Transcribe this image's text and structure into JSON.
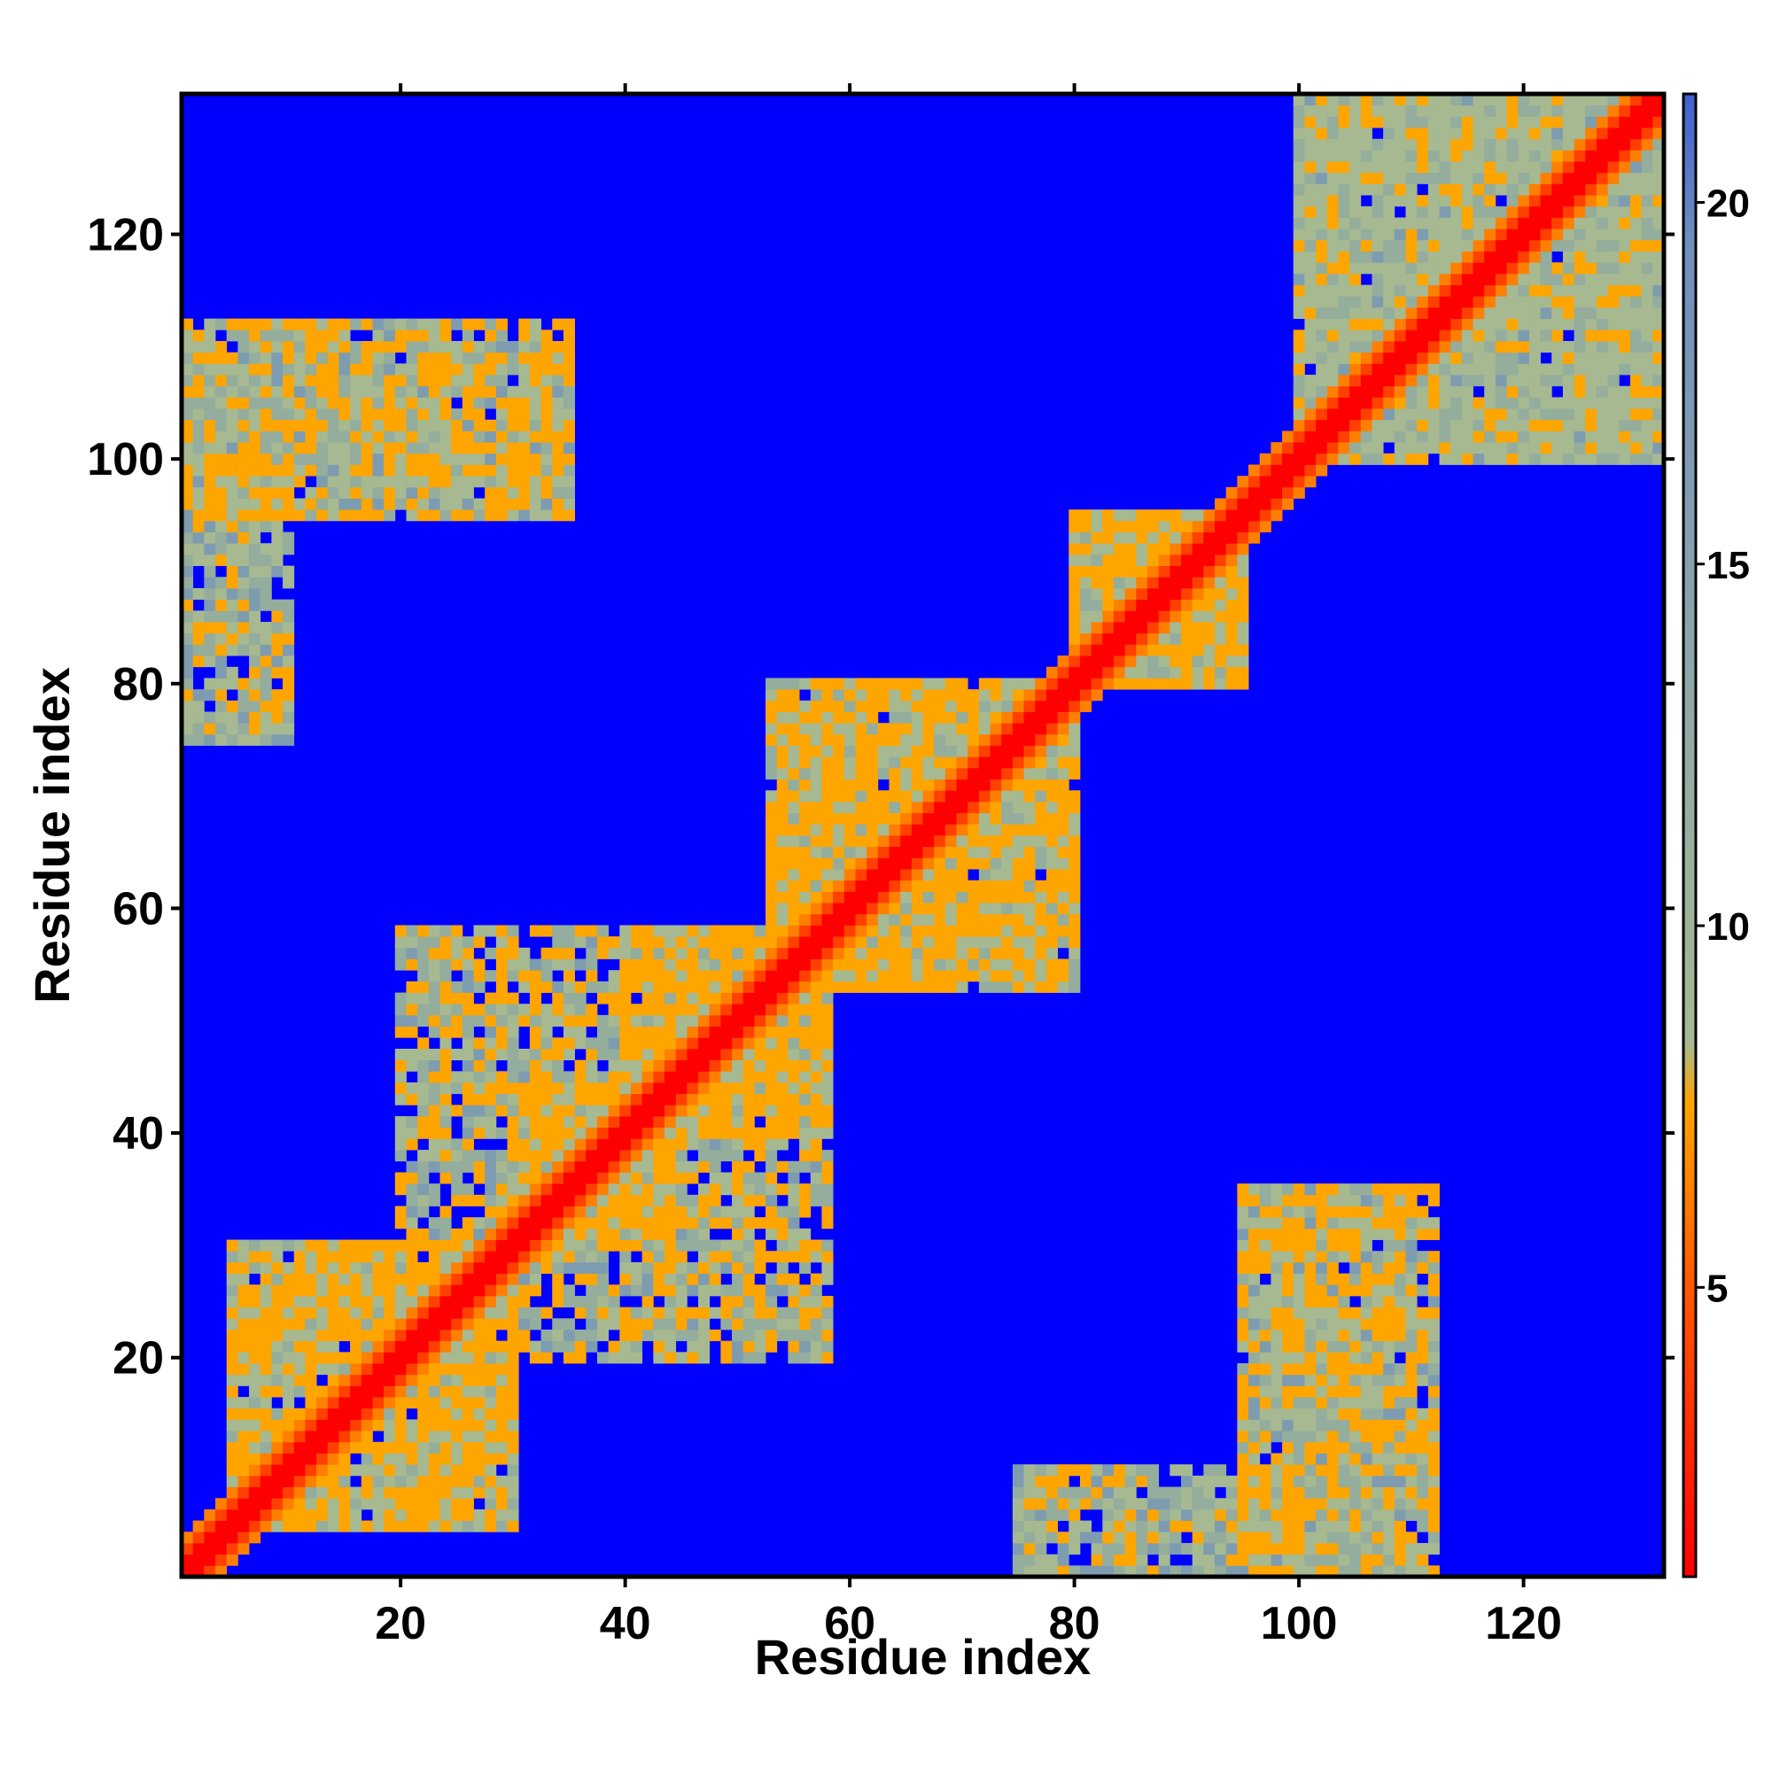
{
  "chart_data": {
    "type": "heatmap",
    "title": "",
    "xlabel": "Residue index",
    "ylabel": "Residue index",
    "n_residues": 132,
    "xlim": [
      1,
      132
    ],
    "ylim": [
      1,
      132
    ],
    "x_ticks": [
      20,
      40,
      60,
      80,
      100,
      120
    ],
    "y_ticks": [
      20,
      40,
      60,
      80,
      100,
      120
    ],
    "colorbar": {
      "ticks": [
        5,
        10,
        15,
        20
      ],
      "range": [
        1,
        21.5
      ],
      "colors": [
        "#ff0000",
        "#ff8000",
        "#ffa500",
        "#9fb38f",
        "#6f8fb0",
        "#0000ff"
      ]
    },
    "background_value": 21,
    "diagonal_band": {
      "value_on_diagonal": 2,
      "value_near_diagonal": 6
    },
    "contact_regions": [
      {
        "residues_i": [
          5,
          30
        ],
        "residues_j": [
          5,
          30
        ],
        "value_min": 6,
        "value_max": 12
      },
      {
        "residues_i": [
          20,
          45
        ],
        "residues_j": [
          30,
          58
        ],
        "value_min": 6,
        "value_max": 13
      },
      {
        "residues_i": [
          40,
          58
        ],
        "residues_j": [
          40,
          58
        ],
        "value_min": 6,
        "value_max": 12
      },
      {
        "residues_i": [
          53,
          80
        ],
        "residues_j": [
          53,
          80
        ],
        "value_min": 6,
        "value_max": 12
      },
      {
        "residues_i": [
          80,
          95
        ],
        "residues_j": [
          80,
          95
        ],
        "value_min": 6,
        "value_max": 12
      },
      {
        "residues_i": [
          100,
          132
        ],
        "residues_j": [
          100,
          132
        ],
        "value_min": 8,
        "value_max": 13
      },
      {
        "residues_i": [
          1,
          35
        ],
        "residues_j": [
          95,
          112
        ],
        "value_min": 6,
        "value_max": 14
      },
      {
        "residues_i": [
          95,
          110
        ],
        "residues_j": [
          1,
          35
        ],
        "value_min": 6,
        "value_max": 14
      },
      {
        "residues_i": [
          75,
          100
        ],
        "residues_j": [
          1,
          10
        ],
        "value_min": 7,
        "value_max": 14
      }
    ]
  }
}
